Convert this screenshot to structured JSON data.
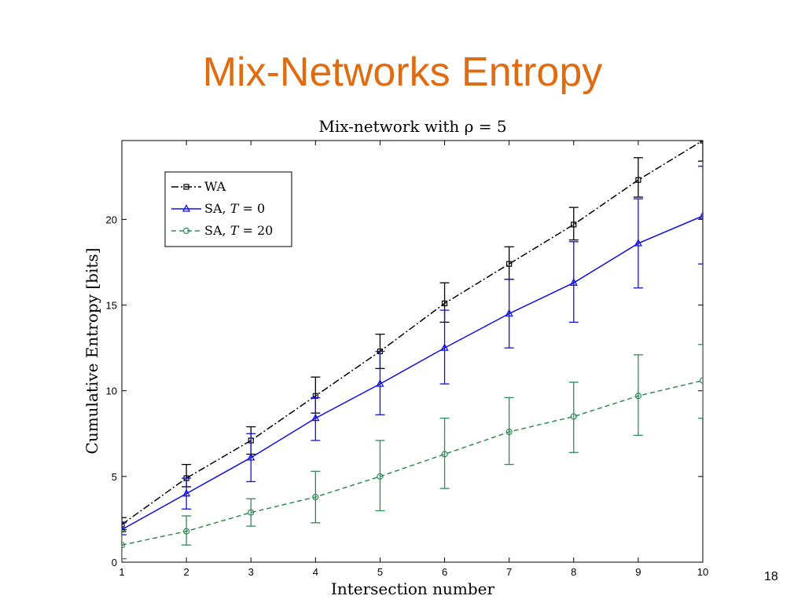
{
  "slide": {
    "title": "Mix-Networks Entropy",
    "page_number": "18"
  },
  "chart_data": {
    "type": "line",
    "title": "Mix-network with ρ = 5",
    "xlabel": "Intersection number",
    "ylabel": "Cumulative Entropy [bits]",
    "xlim": [
      1,
      10
    ],
    "ylim": [
      0,
      24.6
    ],
    "x_ticks": [
      1,
      2,
      3,
      4,
      5,
      6,
      7,
      8,
      9,
      10
    ],
    "y_ticks": [
      0,
      5,
      10,
      15,
      20
    ],
    "grid": false,
    "legend_position": "top-left",
    "x": [
      1,
      2,
      3,
      4,
      5,
      6,
      7,
      8,
      9,
      10
    ],
    "series": [
      {
        "name": "WA",
        "legend_parts": [
          "WA",
          "",
          ""
        ],
        "color": "#000000",
        "line_style": "dash-dot",
        "marker": "square",
        "values": [
          2.2,
          4.9,
          7.1,
          9.7,
          12.3,
          15.1,
          17.4,
          19.7,
          22.3,
          24.6
        ],
        "err_low": [
          1.9,
          4.4,
          6.3,
          8.7,
          11.3,
          14.0,
          16.5,
          18.8,
          21.3,
          23.4
        ],
        "err_high": [
          2.6,
          5.7,
          7.9,
          10.8,
          13.3,
          16.3,
          18.4,
          20.7,
          23.6,
          24.6
        ]
      },
      {
        "name": "SA, T = 0",
        "legend_parts": [
          "SA, ",
          "T",
          " = 0"
        ],
        "color": "#1010e0",
        "line_style": "solid",
        "marker": "triangle",
        "values": [
          1.9,
          4.0,
          6.1,
          8.4,
          10.4,
          12.5,
          14.5,
          16.3,
          18.6,
          20.2
        ],
        "err_low": [
          1.6,
          3.1,
          4.7,
          7.1,
          8.6,
          10.4,
          12.5,
          14.0,
          16.0,
          17.4
        ],
        "err_high": [
          2.3,
          4.9,
          7.5,
          9.6,
          12.3,
          14.7,
          16.5,
          18.7,
          21.2,
          23.1
        ]
      },
      {
        "name": "SA, T = 20",
        "legend_parts": [
          "SA, ",
          "T",
          " = 20"
        ],
        "color": "#2e8b57",
        "line_style": "dashed",
        "marker": "circle",
        "values": [
          1.0,
          1.8,
          2.9,
          3.8,
          5.0,
          6.3,
          7.6,
          8.5,
          9.7,
          10.6
        ],
        "err_low": [
          0.2,
          1.0,
          2.1,
          2.3,
          3.0,
          4.3,
          5.7,
          6.4,
          7.4,
          8.4
        ],
        "err_high": [
          1.8,
          2.7,
          3.7,
          5.3,
          7.1,
          8.4,
          9.6,
          10.5,
          12.1,
          12.7
        ]
      }
    ]
  }
}
